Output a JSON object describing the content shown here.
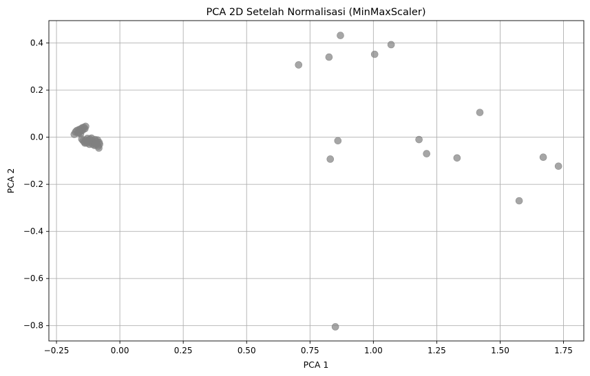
{
  "chart_data": {
    "type": "scatter",
    "title": "PCA 2D Setelah Normalisasi (MinMaxScaler)",
    "xlabel": "PCA 1",
    "ylabel": "PCA 2",
    "xlim": [
      -0.28,
      1.83
    ],
    "ylim": [
      -0.865,
      0.495
    ],
    "xticks": [
      -0.25,
      0.0,
      0.25,
      0.5,
      0.75,
      1.0,
      1.25,
      1.5,
      1.75
    ],
    "xtick_labels": [
      "−0.25",
      "0.00",
      "0.25",
      "0.50",
      "0.75",
      "1.00",
      "1.25",
      "1.50",
      "1.75"
    ],
    "yticks": [
      0.4,
      0.2,
      0.0,
      -0.2,
      -0.4,
      -0.6,
      -0.8
    ],
    "ytick_labels": [
      "0.4",
      "0.2",
      "0.0",
      "−0.2",
      "−0.4",
      "−0.6",
      "−0.8"
    ],
    "grid": true,
    "point_color": "#808080",
    "point_alpha": 0.7,
    "points": [
      [
        0.87,
        0.432
      ],
      [
        1.07,
        0.393
      ],
      [
        1.005,
        0.352
      ],
      [
        0.825,
        0.34
      ],
      [
        0.705,
        0.307
      ],
      [
        1.42,
        0.105
      ],
      [
        1.18,
        -0.01
      ],
      [
        0.86,
        -0.015
      ],
      [
        1.21,
        -0.07
      ],
      [
        0.83,
        -0.093
      ],
      [
        1.33,
        -0.088
      ],
      [
        1.67,
        -0.085
      ],
      [
        1.73,
        -0.123
      ],
      [
        1.575,
        -0.27
      ],
      [
        0.85,
        -0.805
      ],
      [
        -0.18,
        0.012
      ],
      [
        -0.175,
        0.022
      ],
      [
        -0.17,
        0.028
      ],
      [
        -0.165,
        0.018
      ],
      [
        -0.162,
        0.032
      ],
      [
        -0.158,
        0.025
      ],
      [
        -0.155,
        0.035
      ],
      [
        -0.15,
        0.028
      ],
      [
        -0.148,
        0.04
      ],
      [
        -0.145,
        0.032
      ],
      [
        -0.142,
        0.042
      ],
      [
        -0.138,
        0.036
      ],
      [
        -0.135,
        0.046
      ],
      [
        -0.155,
        0.015
      ],
      [
        -0.16,
        0.02
      ],
      [
        -0.15,
        -0.008
      ],
      [
        -0.145,
        -0.015
      ],
      [
        -0.14,
        -0.02
      ],
      [
        -0.135,
        -0.012
      ],
      [
        -0.13,
        -0.025
      ],
      [
        -0.125,
        -0.018
      ],
      [
        -0.12,
        -0.03
      ],
      [
        -0.118,
        -0.008
      ],
      [
        -0.115,
        -0.022
      ],
      [
        -0.11,
        -0.015
      ],
      [
        -0.108,
        -0.03
      ],
      [
        -0.105,
        -0.02
      ],
      [
        -0.1,
        -0.025
      ],
      [
        -0.098,
        -0.01
      ],
      [
        -0.095,
        -0.032
      ],
      [
        -0.092,
        -0.018
      ],
      [
        -0.09,
        -0.028
      ],
      [
        -0.088,
        -0.012
      ],
      [
        -0.085,
        -0.038
      ],
      [
        -0.083,
        -0.046
      ],
      [
        -0.082,
        -0.022
      ],
      [
        -0.08,
        -0.03
      ],
      [
        -0.128,
        -0.005
      ],
      [
        -0.112,
        -0.004
      ],
      [
        -0.1,
        -0.035
      ],
      [
        -0.138,
        -0.025
      ],
      [
        -0.122,
        -0.012
      ]
    ]
  }
}
